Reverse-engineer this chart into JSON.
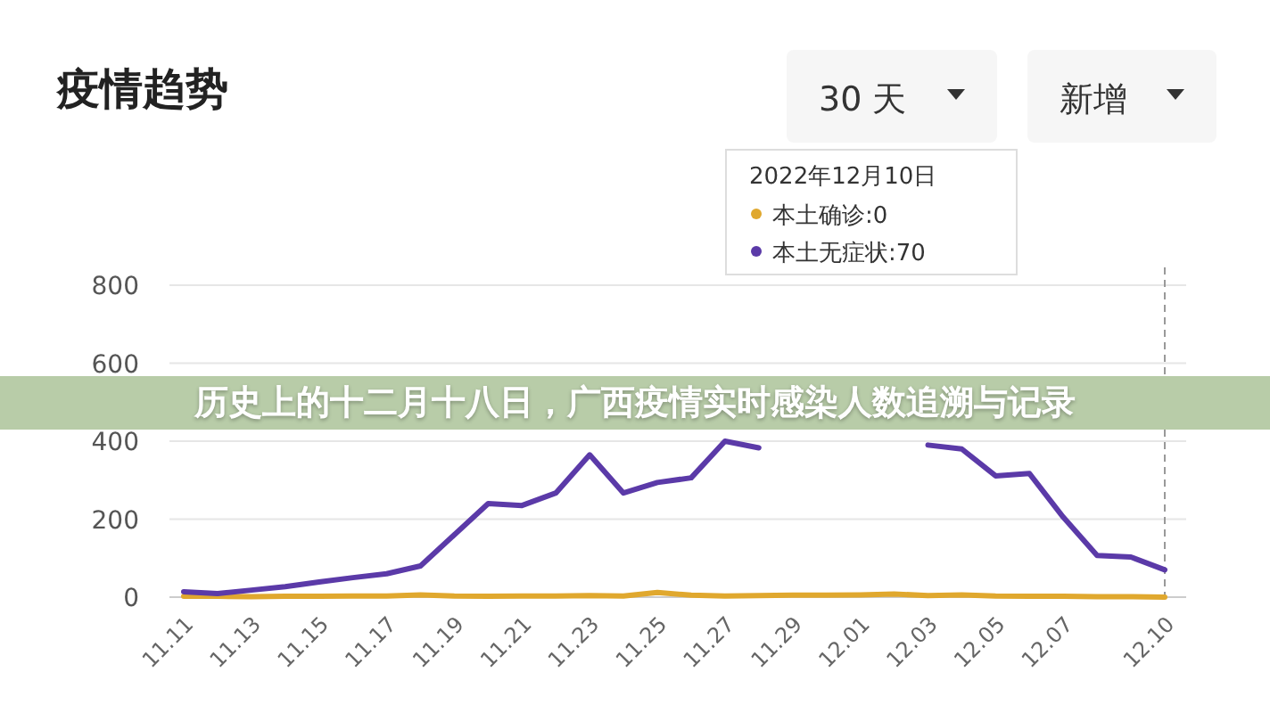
{
  "chart_data": {
    "type": "line",
    "title": "疫情趋势",
    "categories": [
      "11.11",
      null,
      "11.13",
      null,
      "11.15",
      null,
      "11.17",
      null,
      "11.19",
      null,
      "11.21",
      null,
      "11.23",
      null,
      "11.25",
      null,
      "11.27",
      null,
      "11.29",
      null,
      "12.01",
      null,
      "12.03",
      null,
      "12.05",
      null,
      "12.07",
      null,
      null,
      "12.10"
    ],
    "series": [
      {
        "color": "#e0a82e",
        "values": [
          2,
          2,
          1,
          2,
          2,
          3,
          3,
          6,
          3,
          2,
          3,
          3,
          4,
          3,
          12,
          5,
          3,
          4,
          5,
          5,
          6,
          8,
          4,
          6,
          3,
          2,
          2,
          1,
          1,
          0
        ]
      },
      {
        "color": "#5b3aa8",
        "values": [
          14,
          9,
          18,
          27,
          39,
          50,
          60,
          80,
          160,
          240,
          235,
          267,
          365,
          267,
          294,
          306,
          400,
          383,
          null,
          null,
          null,
          null,
          390,
          380,
          311,
          317,
          205,
          107,
          103,
          70
        ]
      }
    ],
    "ylim": [
      0,
      800
    ],
    "yticks": [
      0,
      200,
      400,
      600,
      800
    ],
    "grid": "y",
    "marker": "none",
    "line_style": "solid",
    "ref_lines": [
      {
        "axis": "x",
        "value": "12.10",
        "color": "#999999",
        "line_style": "dashed"
      }
    ],
    "annotations": [
      "30 天",
      "新增",
      "2022年12月10日",
      "本土确诊:0",
      "本土无症状:70",
      "历史上的十二月十八日，广西疫情实时感染人数追溯与记录"
    ]
  }
}
